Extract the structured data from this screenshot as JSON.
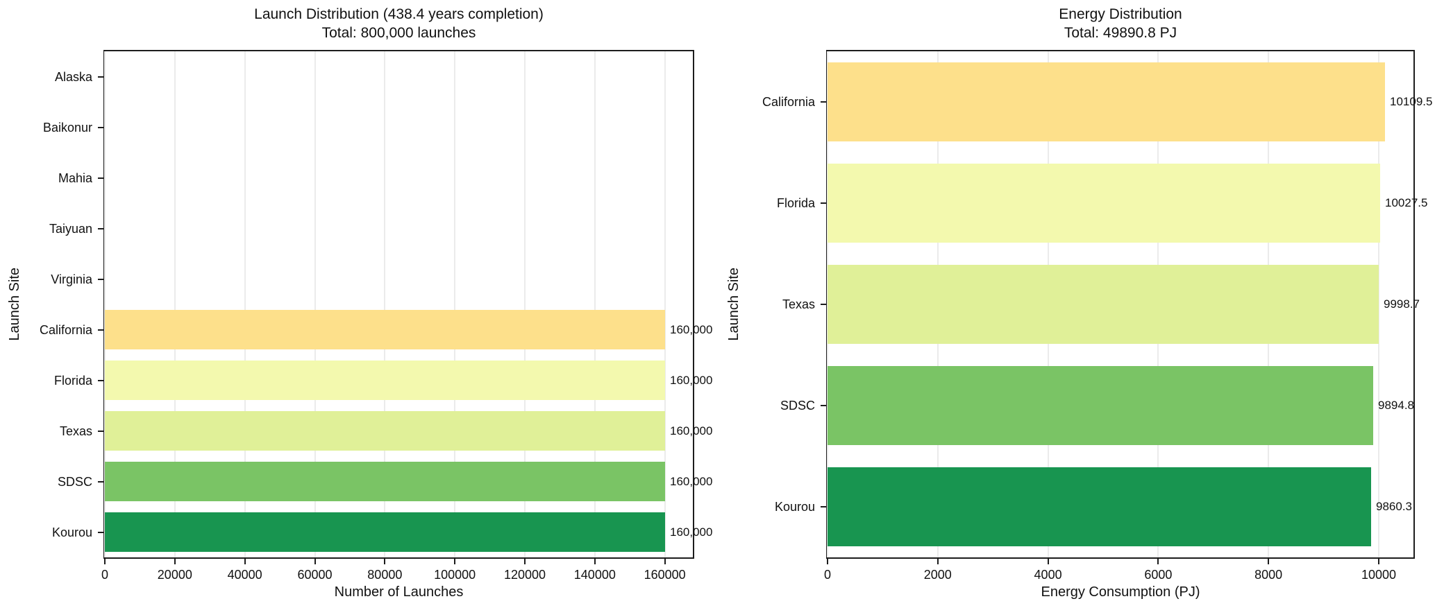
{
  "figure": {
    "background": "#ffffff",
    "spine_color": "#1c1c1c",
    "grid_color": "#ebebeb",
    "text_color": "#111111"
  },
  "chart_data": [
    {
      "type": "bar",
      "orientation": "horizontal",
      "title": "Launch Distribution (438.4 years completion)",
      "subtitle": "Total: 800,000 launches",
      "xlabel": "Number of Launches",
      "ylabel": "Launch Site",
      "categories": [
        "Alaska",
        "Baikonur",
        "Mahia",
        "Taiyuan",
        "Virginia",
        "California",
        "Florida",
        "Texas",
        "SDSC",
        "Kourou"
      ],
      "values": [
        0,
        0,
        0,
        0,
        0,
        160000,
        160000,
        160000,
        160000,
        160000
      ],
      "bar_labels": [
        "",
        "",
        "",
        "",
        "",
        "160,000",
        "160,000",
        "160,000",
        "160,000",
        "160,000"
      ],
      "bar_colors": [
        null,
        null,
        null,
        null,
        null,
        "#fde08b",
        "#f3f9ae",
        "#e0f098",
        "#7ac465",
        "#189550"
      ],
      "xlim": [
        0,
        168000
      ],
      "xticks": [
        0,
        20000,
        40000,
        60000,
        80000,
        100000,
        120000,
        140000,
        160000
      ],
      "xtick_labels": [
        "0",
        "20000",
        "40000",
        "60000",
        "80000",
        "100000",
        "120000",
        "140000",
        "160000"
      ],
      "grid": true,
      "legend": null
    },
    {
      "type": "bar",
      "orientation": "horizontal",
      "title": "Energy Distribution",
      "subtitle": "Total: 49890.8 PJ",
      "xlabel": "Energy Consumption (PJ)",
      "ylabel": "Launch Site",
      "categories": [
        "California",
        "Florida",
        "Texas",
        "SDSC",
        "Kourou"
      ],
      "values": [
        10109.5,
        10027.5,
        9998.7,
        9894.8,
        9860.3
      ],
      "bar_labels": [
        "10109.5",
        "10027.5",
        "9998.7",
        "9894.8",
        "9860.3"
      ],
      "bar_colors": [
        "#fde08b",
        "#f3f9ae",
        "#e0f098",
        "#7ac465",
        "#189550"
      ],
      "xlim": [
        0,
        10630
      ],
      "xticks": [
        0,
        2000,
        4000,
        6000,
        8000,
        10000
      ],
      "xtick_labels": [
        "0",
        "2000",
        "4000",
        "6000",
        "8000",
        "10000"
      ],
      "grid": true,
      "legend": null
    }
  ]
}
